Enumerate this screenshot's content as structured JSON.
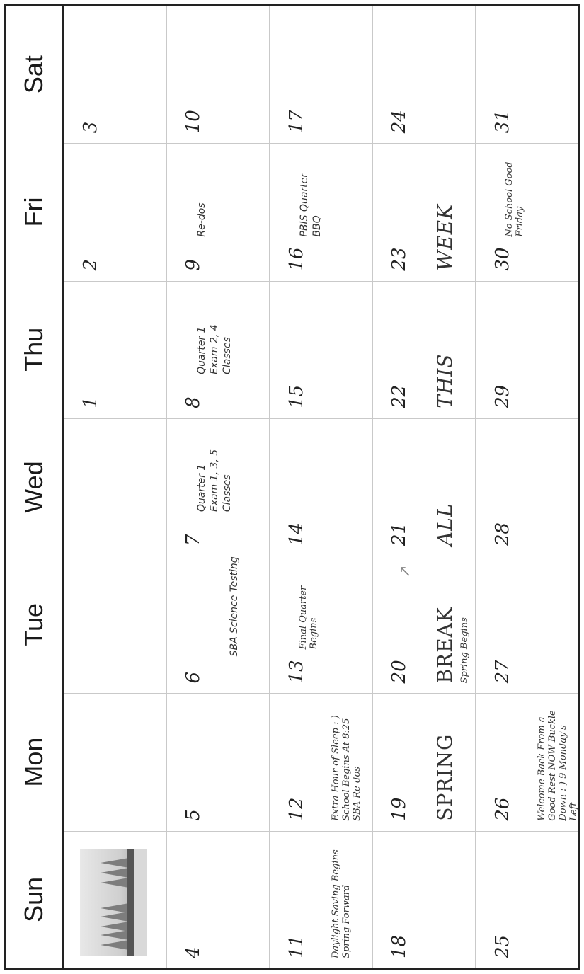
{
  "days": [
    "Sun",
    "Mon",
    "Tue",
    "Wed",
    "Thu",
    "Fri",
    "Sat"
  ],
  "cells": [
    {
      "num": "",
      "image": true
    },
    {
      "num": ""
    },
    {
      "num": ""
    },
    {
      "num": ""
    },
    {
      "num": "1"
    },
    {
      "num": "2"
    },
    {
      "num": "3"
    },
    {
      "num": "4"
    },
    {
      "num": "5"
    },
    {
      "num": "6",
      "event": "SBA Science Testing",
      "style": "sans-next"
    },
    {
      "num": "7",
      "event": "Quarter 1 Exam 1, 3, 5 Classes",
      "style": "sans-right"
    },
    {
      "num": "8",
      "event": "Quarter 1 Exam 2, 4 Classes",
      "style": "sans-right"
    },
    {
      "num": "9",
      "event": "Re-dos",
      "style": "sans-right"
    },
    {
      "num": "10"
    },
    {
      "num": "11",
      "event": "Daylight Saving Begins Spring Forward",
      "style": "serif"
    },
    {
      "num": "12",
      "event": "Extra Hour of Sleep :-) School Begins At 8:25 SBA Re-dos",
      "style": "serif"
    },
    {
      "num": "13",
      "event": "Final Quarter Begins",
      "style": "serif-right"
    },
    {
      "num": "14"
    },
    {
      "num": "15"
    },
    {
      "num": "16",
      "event": "PBIS Quarter BBQ",
      "style": "sans-right"
    },
    {
      "num": "17"
    },
    {
      "num": "18"
    },
    {
      "num": "19",
      "event": "SPRING",
      "style": "big"
    },
    {
      "num": "20",
      "event": "BREAK",
      "sub": "Spring Begins",
      "style": "big",
      "mark": true
    },
    {
      "num": "21",
      "event": "ALL",
      "style": "big-it"
    },
    {
      "num": "22",
      "event": "THIS",
      "style": "big-it"
    },
    {
      "num": "23",
      "event": "WEEK",
      "style": "big-it"
    },
    {
      "num": "24"
    },
    {
      "num": "25"
    },
    {
      "num": "26",
      "event": "Welcome Back From a Good Rest NOW Buckle Down :-) 9 Monday's Left",
      "style": "serif"
    },
    {
      "num": "27"
    },
    {
      "num": "28"
    },
    {
      "num": "29"
    },
    {
      "num": "30",
      "event": "No School Good Friday",
      "style": "serif-right"
    },
    {
      "num": "31"
    }
  ]
}
